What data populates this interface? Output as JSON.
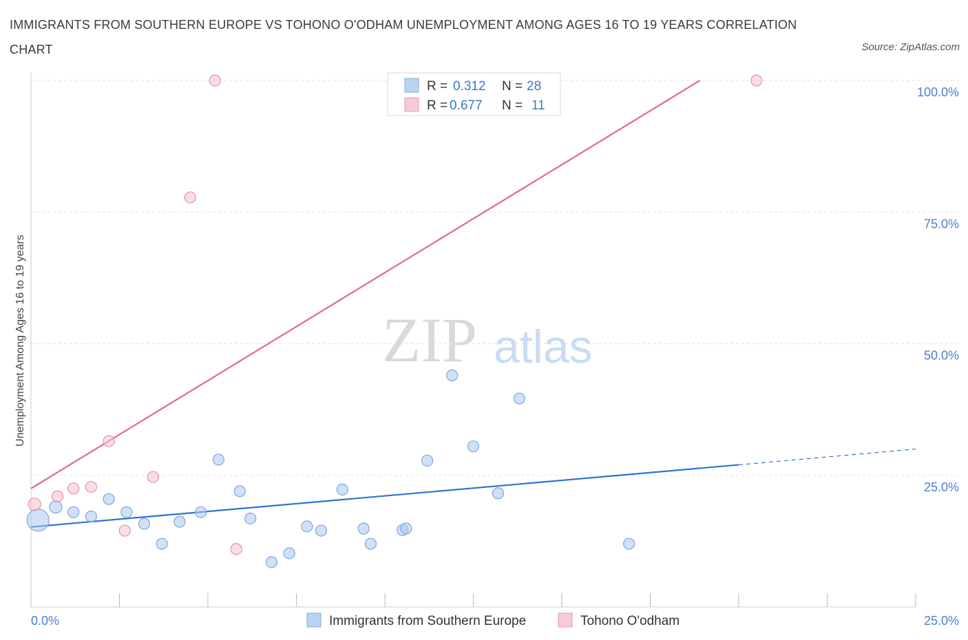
{
  "chart_data": {
    "type": "scatter",
    "title": "IMMIGRANTS FROM SOUTHERN EUROPE VS TOHONO O'ODHAM UNEMPLOYMENT AMONG AGES 16 TO 19 YEARS CORRELATION CHART",
    "source": "Source: ZipAtlas.com",
    "ylabel": "Unemployment Among Ages 16 to 19 years",
    "xlim": [
      0,
      25
    ],
    "ylim": [
      0,
      100
    ],
    "x_tick_labels": [
      "0.0%",
      "25.0%"
    ],
    "y_ticks": [
      25,
      50,
      75,
      100
    ],
    "y_tick_labels": [
      "25.0%",
      "50.0%",
      "75.0%",
      "100.0%"
    ],
    "watermark": {
      "zip": "ZIP",
      "atlas": "atlas"
    },
    "legend": [
      {
        "r_label": "R =",
        "r_value": "0.312",
        "n_label": "N =",
        "n_value": "28"
      },
      {
        "r_label": "R =",
        "r_value": "0.677",
        "n_label": "N =",
        "n_value": "11"
      }
    ],
    "series": [
      {
        "name": "Immigrants from Southern Europe",
        "color": "#a9c8f0",
        "stroke": "#7aa6df",
        "line_color": "#2f74d0",
        "trend": {
          "x0": 0,
          "y0": 15.2,
          "x1": 20,
          "y1": 27.0,
          "dash_to_x": 25,
          "dash_to_y": 30.0
        },
        "points": [
          [
            0.2,
            16.5,
            16
          ],
          [
            0.7,
            19.0,
            9
          ],
          [
            1.2,
            18.0,
            8
          ],
          [
            1.7,
            17.2,
            8
          ],
          [
            2.2,
            20.5,
            8
          ],
          [
            2.7,
            18.0,
            8
          ],
          [
            3.2,
            15.8,
            8
          ],
          [
            3.7,
            12.0,
            8
          ],
          [
            4.2,
            16.2,
            8
          ],
          [
            4.8,
            18.0,
            8
          ],
          [
            5.3,
            28.0,
            8
          ],
          [
            5.9,
            22.0,
            8
          ],
          [
            6.2,
            16.8,
            8
          ],
          [
            6.8,
            8.5,
            8
          ],
          [
            7.3,
            10.2,
            8
          ],
          [
            7.8,
            15.3,
            8
          ],
          [
            8.2,
            14.5,
            8
          ],
          [
            8.8,
            22.3,
            8
          ],
          [
            9.4,
            14.9,
            8
          ],
          [
            9.6,
            12.0,
            8
          ],
          [
            10.5,
            14.6,
            8
          ],
          [
            10.6,
            14.9,
            8
          ],
          [
            11.2,
            27.8,
            8
          ],
          [
            11.9,
            44.0,
            8
          ],
          [
            12.5,
            30.5,
            8
          ],
          [
            13.2,
            21.6,
            8
          ],
          [
            13.8,
            39.6,
            8
          ],
          [
            16.9,
            12.0,
            8
          ]
        ]
      },
      {
        "name": "Tohono O'odham",
        "color": "#f6c2d0",
        "stroke": "#e78fa9",
        "line_color": "#e06a90",
        "trend": {
          "x0": 0,
          "y0": 22.5,
          "x1": 18.9,
          "y1": 100
        },
        "points": [
          [
            0.1,
            19.5,
            9
          ],
          [
            0.75,
            21.0,
            8
          ],
          [
            1.2,
            22.5,
            8
          ],
          [
            1.7,
            22.8,
            8
          ],
          [
            2.2,
            31.5,
            8
          ],
          [
            2.65,
            14.5,
            8
          ],
          [
            3.45,
            24.7,
            8
          ],
          [
            4.5,
            77.8,
            8
          ],
          [
            5.2,
            100,
            8
          ],
          [
            5.8,
            11.0,
            8
          ],
          [
            20.5,
            100,
            8
          ]
        ]
      }
    ]
  }
}
